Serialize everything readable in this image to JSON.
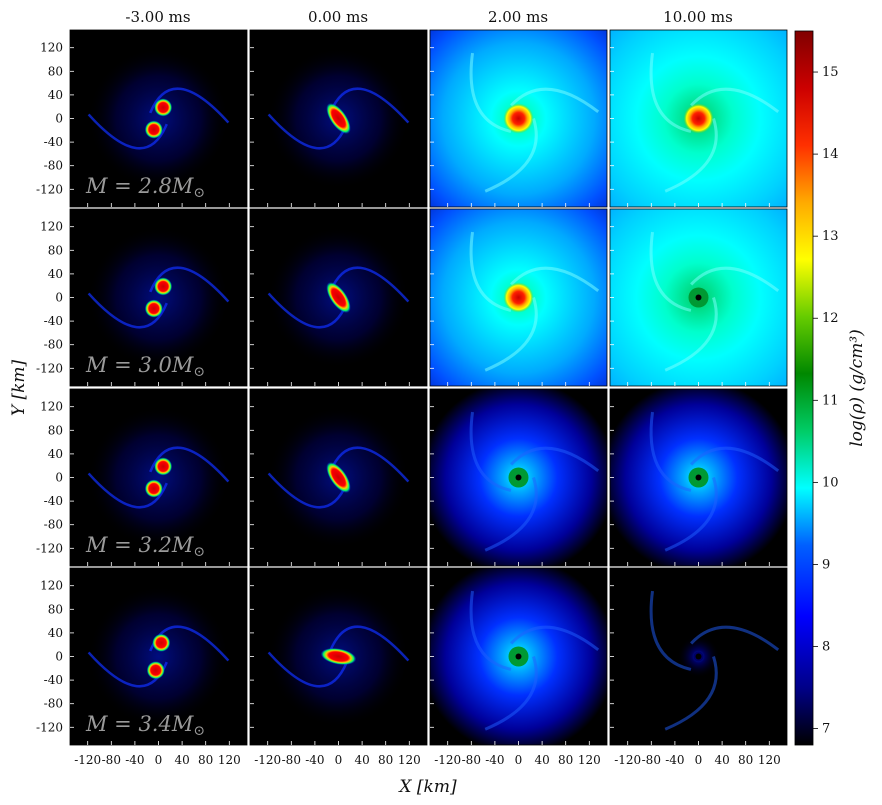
{
  "chart_data": {
    "type": "heatmap",
    "description_kind": "grid of density snapshots",
    "columns": [
      "-3.00 ms",
      "0.00 ms",
      "2.00 ms",
      "10.00 ms"
    ],
    "rows": [
      {
        "mass_label": "M = 2.8M",
        "sub": "⊙",
        "intensity": [
          0.25,
          0.45,
          0.95,
          1.0
        ],
        "remnant": [
          false,
          false,
          true,
          true
        ]
      },
      {
        "mass_label": "M = 3.0M",
        "sub": "⊙",
        "intensity": [
          0.22,
          0.45,
          0.9,
          0.85
        ],
        "remnant": [
          false,
          false,
          true,
          false
        ]
      },
      {
        "mass_label": "M = 3.2M",
        "sub": "⊙",
        "intensity": [
          0.2,
          0.42,
          0.6,
          0.45
        ],
        "remnant": [
          false,
          false,
          false,
          false
        ]
      },
      {
        "mass_label": "M = 3.4M",
        "sub": "⊙",
        "intensity": [
          0.2,
          0.42,
          0.45,
          0.08
        ],
        "remnant": [
          false,
          false,
          false,
          false
        ]
      }
    ],
    "xlabel": "X [km]",
    "ylabel": "Y [km]",
    "x_ticks": [
      "-120",
      "-80",
      "-40",
      "0",
      "40",
      "80",
      "120"
    ],
    "y_ticks": [
      "120",
      "80",
      "40",
      "0",
      "-40",
      "-80",
      "-120"
    ],
    "xlim": [
      -150,
      150
    ],
    "ylim": [
      -150,
      150
    ],
    "colorbar": {
      "label": "log(ρ) (g/cm³)",
      "ticks": [
        "15",
        "14",
        "13",
        "12",
        "11",
        "10",
        "9",
        "8",
        "7"
      ],
      "range": [
        6.8,
        15.5
      ],
      "colors": [
        "#000000",
        "#0000a0",
        "#0000ff",
        "#0080ff",
        "#00ffff",
        "#00cc66",
        "#009900",
        "#66cc00",
        "#ffff00",
        "#ffaa00",
        "#ff4000",
        "#cc0000",
        "#880000"
      ]
    }
  }
}
